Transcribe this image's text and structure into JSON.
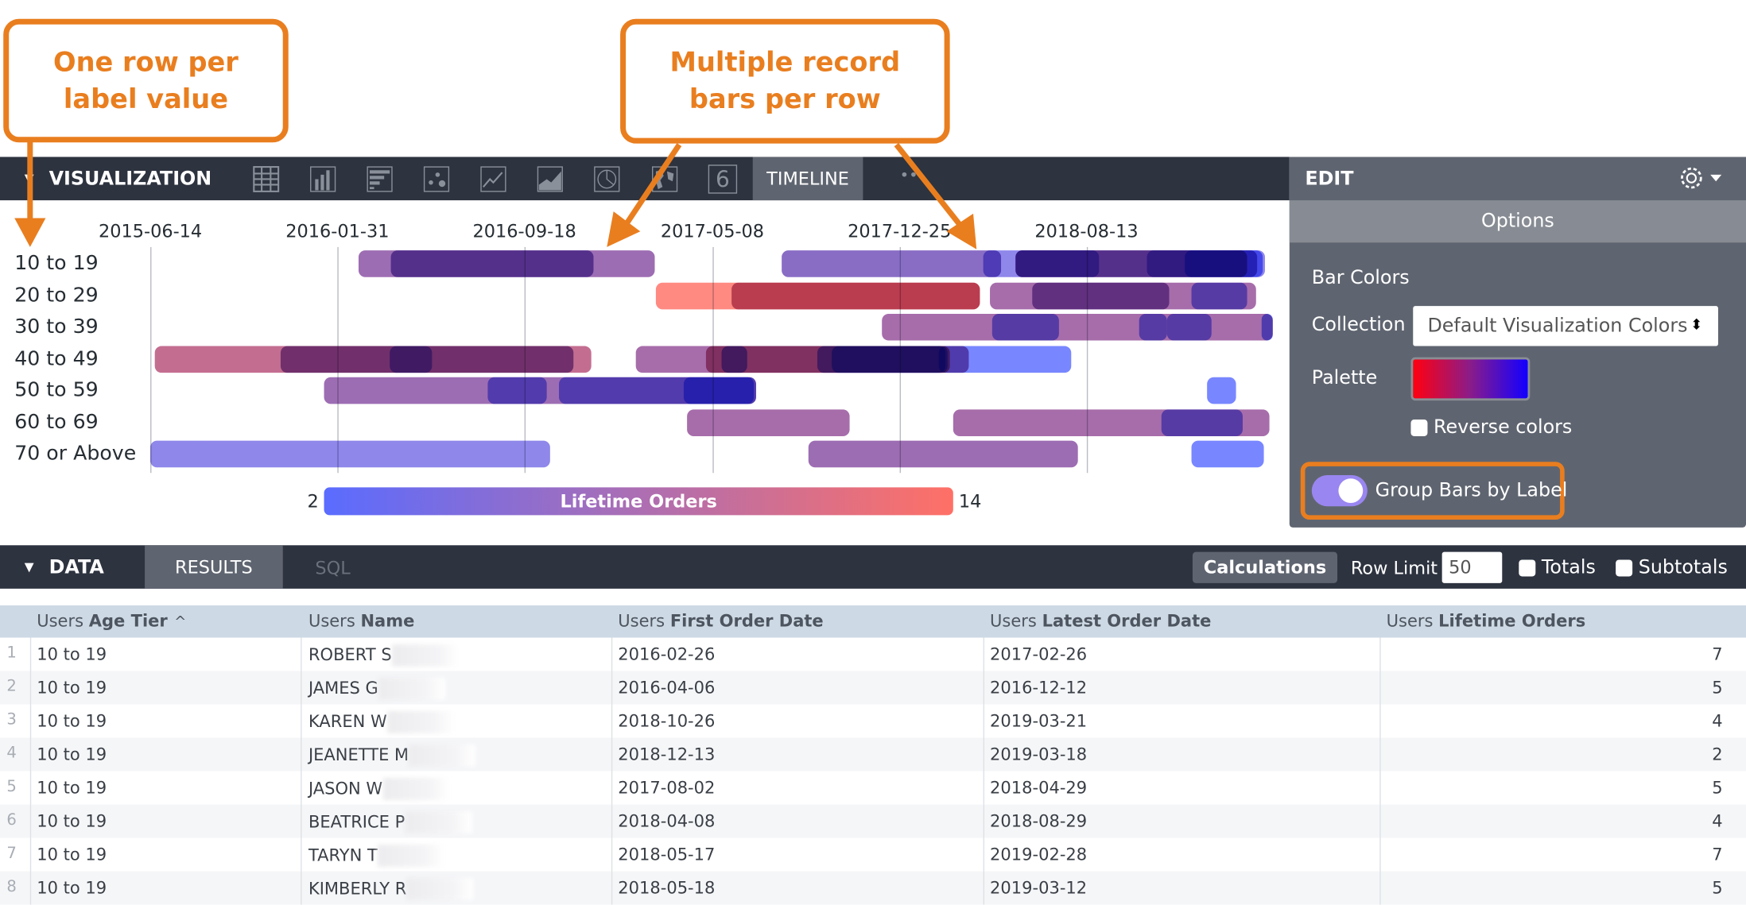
{
  "annotations": {
    "callout_left": "One row per label value",
    "callout_right": "Multiple record bars per row",
    "color": "#e97e1f"
  },
  "visualization": {
    "title": "VISUALIZATION",
    "chart_types": [
      "table-icon",
      "column-chart-icon",
      "bar-chart-icon",
      "scatter-icon",
      "line-chart-icon",
      "area-chart-icon",
      "pie-chart-icon",
      "map-icon",
      "single-value-icon"
    ],
    "single_value_glyph": "6",
    "active_tab": "TIMELINE",
    "more": "••"
  },
  "edit": {
    "title": "EDIT",
    "options_tab": "Options",
    "bar_colors_label": "Bar Colors",
    "collection_label": "Collection",
    "collection_value": "Default Visualization Colors",
    "palette_label": "Palette",
    "palette_colors": [
      "#ff0010",
      "#8a1c8a",
      "#1200ff"
    ],
    "reverse_colors_label": "Reverse colors",
    "reverse_colors": false,
    "group_bars_label": "Group Bars by Label",
    "group_bars": true
  },
  "chart_data": {
    "type": "timeline",
    "x_ticks": [
      "2015-06-14",
      "2016-01-31",
      "2016-09-18",
      "2017-05-08",
      "2017-12-25",
      "2018-08-13"
    ],
    "rows": [
      "10 to 19",
      "20 to 29",
      "30 to 39",
      "40 to 49",
      "50 to 59",
      "60 to 69",
      "70 or Above"
    ],
    "legend": {
      "title": "Lifetime Orders",
      "min": 2,
      "max": 14,
      "min_color": "#5a6cff",
      "max_color": "#ff7066"
    },
    "grid": true,
    "bars": [
      {
        "row": "10 to 19",
        "start": "2016-02-26",
        "end": "2017-02-26",
        "value": 7
      },
      {
        "row": "10 to 19",
        "start": "2016-04-06",
        "end": "2016-12-12",
        "value": 5
      },
      {
        "row": "10 to 19",
        "start": "2018-10-26",
        "end": "2019-03-21",
        "value": 4
      },
      {
        "row": "10 to 19",
        "start": "2018-12-13",
        "end": "2019-03-18",
        "value": 2
      },
      {
        "row": "10 to 19",
        "start": "2017-08-02",
        "end": "2018-04-29",
        "value": 5
      },
      {
        "row": "10 to 19",
        "start": "2018-04-08",
        "end": "2018-08-29",
        "value": 4
      },
      {
        "row": "10 to 19",
        "start": "2018-05-17",
        "end": "2019-02-28",
        "value": 7
      },
      {
        "row": "10 to 19",
        "start": "2018-05-18",
        "end": "2019-03-12",
        "value": 5
      },
      {
        "row": "20 to 29",
        "start": "2017-02-27",
        "end": "2018-04-03",
        "value": 14
      },
      {
        "row": "20 to 29",
        "start": "2017-06-01",
        "end": "2018-04-03",
        "value": 10
      },
      {
        "row": "20 to 29",
        "start": "2018-04-16",
        "end": "2019-03-11",
        "value": 8
      },
      {
        "row": "20 to 29",
        "start": "2018-06-07",
        "end": "2018-11-23",
        "value": 6
      },
      {
        "row": "20 to 29",
        "start": "2018-12-21",
        "end": "2019-02-28",
        "value": 3
      },
      {
        "row": "30 to 39",
        "start": "2017-12-04",
        "end": "2019-03-31",
        "value": 8
      },
      {
        "row": "30 to 39",
        "start": "2018-04-19",
        "end": "2018-07-10",
        "value": 3
      },
      {
        "row": "30 to 39",
        "start": "2018-10-17",
        "end": "2018-11-21",
        "value": 3
      },
      {
        "row": "30 to 39",
        "start": "2018-11-21",
        "end": "2019-01-15",
        "value": 3
      },
      {
        "row": "30 to 39",
        "start": "2019-03-17",
        "end": "2019-03-31",
        "value": 2
      },
      {
        "row": "40 to 49",
        "start": "2015-06-20",
        "end": "2016-12-09",
        "value": 11
      },
      {
        "row": "40 to 49",
        "start": "2015-11-22",
        "end": "2016-11-17",
        "value": 6
      },
      {
        "row": "40 to 49",
        "start": "2016-04-04",
        "end": "2016-05-27",
        "value": 4
      },
      {
        "row": "40 to 49",
        "start": "2017-02-02",
        "end": "2018-03-20",
        "value": 8
      },
      {
        "row": "40 to 49",
        "start": "2017-04-30",
        "end": "2018-02-25",
        "value": 11
      },
      {
        "row": "40 to 49",
        "start": "2017-05-19",
        "end": "2017-06-20",
        "value": 3
      },
      {
        "row": "40 to 49",
        "start": "2017-09-15",
        "end": "2018-02-20",
        "value": 3
      },
      {
        "row": "40 to 49",
        "start": "2017-10-03",
        "end": "2018-02-22",
        "value": 2
      },
      {
        "row": "40 to 49",
        "start": "2018-02-11",
        "end": "2018-07-25",
        "value": 2
      },
      {
        "row": "50 to 59",
        "start": "2016-01-14",
        "end": "2017-07-01",
        "value": 7
      },
      {
        "row": "50 to 59",
        "start": "2016-08-03",
        "end": "2016-10-16",
        "value": 3
      },
      {
        "row": "50 to 59",
        "start": "2016-10-30",
        "end": "2017-07-01",
        "value": 3
      },
      {
        "row": "50 to 59",
        "start": "2017-04-03",
        "end": "2017-06-28",
        "value": 2
      },
      {
        "row": "50 to 59",
        "start": "2019-01-09",
        "end": "2019-02-13",
        "value": 2
      },
      {
        "row": "60 to 69",
        "start": "2017-04-07",
        "end": "2017-10-24",
        "value": 8
      },
      {
        "row": "60 to 69",
        "start": "2018-03-02",
        "end": "2019-03-27",
        "value": 8
      },
      {
        "row": "60 to 69",
        "start": "2018-11-14",
        "end": "2019-02-22",
        "value": 3
      },
      {
        "row": "70 or Above",
        "start": "2015-06-14",
        "end": "2016-10-20",
        "value": 4
      },
      {
        "row": "70 or Above",
        "start": "2017-09-03",
        "end": "2018-08-03",
        "value": 7
      },
      {
        "row": "70 or Above",
        "start": "2018-12-20",
        "end": "2019-03-20",
        "value": 2
      }
    ]
  },
  "data_bar": {
    "title": "DATA",
    "tabs": [
      "RESULTS",
      "SQL"
    ],
    "calculations": "Calculations",
    "row_limit_label": "Row Limit",
    "row_limit": "50",
    "totals_label": "Totals",
    "subtotals_label": "Subtotals"
  },
  "table": {
    "columns": [
      {
        "prefix": "Users",
        "name": "Age Tier",
        "sort": "^"
      },
      {
        "prefix": "Users",
        "name": "Name"
      },
      {
        "prefix": "Users",
        "name": "First Order Date"
      },
      {
        "prefix": "Users",
        "name": "Latest Order Date"
      },
      {
        "prefix": "Users",
        "name": "Lifetime Orders"
      }
    ],
    "rows": [
      {
        "n": "1",
        "tier": "10 to 19",
        "name": "ROBERT S",
        "first": "2016-02-26",
        "latest": "2017-02-26",
        "orders": "7"
      },
      {
        "n": "2",
        "tier": "10 to 19",
        "name": "JAMES G",
        "first": "2016-04-06",
        "latest": "2016-12-12",
        "orders": "5"
      },
      {
        "n": "3",
        "tier": "10 to 19",
        "name": "KAREN W",
        "first": "2018-10-26",
        "latest": "2019-03-21",
        "orders": "4"
      },
      {
        "n": "4",
        "tier": "10 to 19",
        "name": "JEANETTE M",
        "first": "2018-12-13",
        "latest": "2019-03-18",
        "orders": "2"
      },
      {
        "n": "5",
        "tier": "10 to 19",
        "name": "JASON W",
        "first": "2017-08-02",
        "latest": "2018-04-29",
        "orders": "5"
      },
      {
        "n": "6",
        "tier": "10 to 19",
        "name": "BEATRICE P",
        "first": "2018-04-08",
        "latest": "2018-08-29",
        "orders": "4"
      },
      {
        "n": "7",
        "tier": "10 to 19",
        "name": "TARYN T",
        "first": "2018-05-17",
        "latest": "2019-02-28",
        "orders": "7"
      },
      {
        "n": "8",
        "tier": "10 to 19",
        "name": "KIMBERLY R",
        "first": "2018-05-18",
        "latest": "2019-03-12",
        "orders": "5"
      }
    ]
  }
}
